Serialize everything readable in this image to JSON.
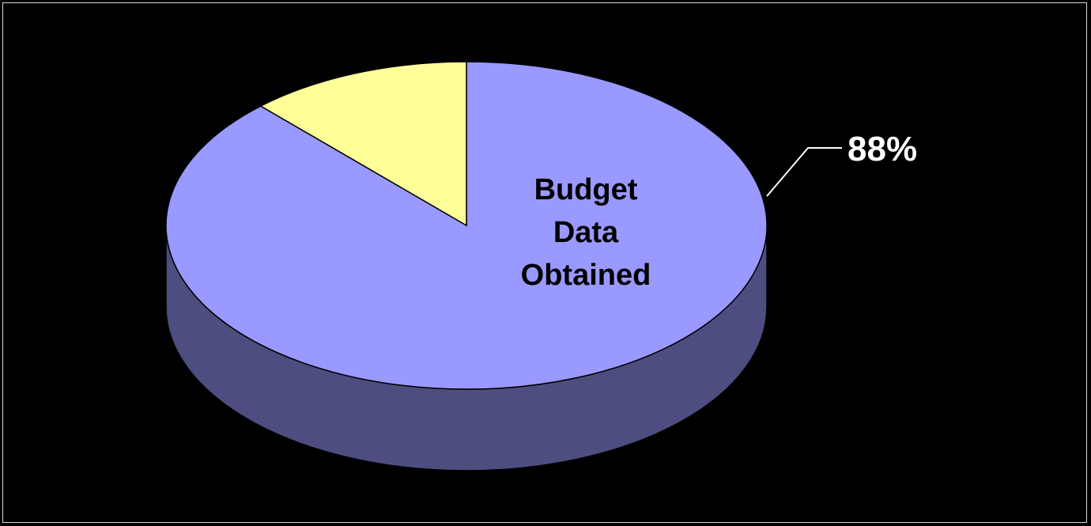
{
  "chart_data": {
    "type": "pie",
    "style": "3d",
    "slices": [
      {
        "label": "Budget Data Obtained",
        "label_lines": [
          "Budget",
          "Data",
          "Obtained"
        ],
        "value": 88,
        "value_label": "88%",
        "color": "#9999ff",
        "side_color": "#4d4d7f"
      },
      {
        "label": "",
        "value": 12,
        "color": "#ffff99",
        "side_color": "#80804d"
      }
    ],
    "background": "#000000",
    "frame_color": "#d8d8d8",
    "leader_color": "#ffffff"
  }
}
